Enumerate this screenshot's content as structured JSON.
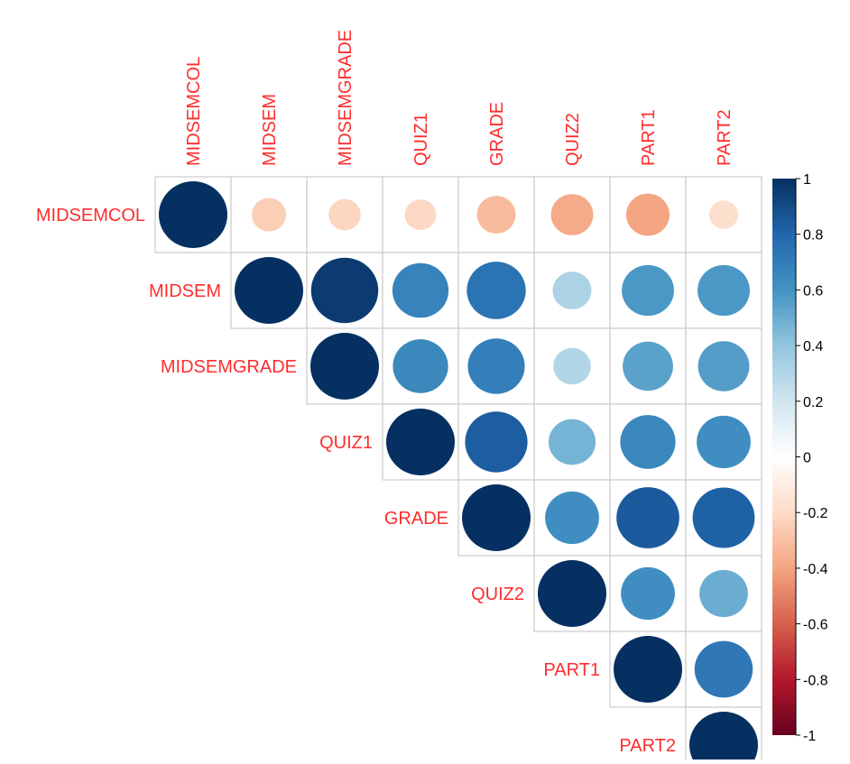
{
  "chart_data": {
    "type": "heatmap",
    "subtype": "correlation-circle-upper",
    "variables": [
      "MIDSEMCOL",
      "MIDSEM",
      "MIDSEMGRADE",
      "QUIZ1",
      "GRADE",
      "QUIZ2",
      "PART1",
      "PART2"
    ],
    "matrix": [
      [
        1.0,
        -0.25,
        -0.22,
        -0.21,
        -0.32,
        -0.38,
        -0.4,
        -0.18
      ],
      [
        -0.25,
        1.0,
        0.96,
        0.67,
        0.74,
        0.32,
        0.58,
        0.58
      ],
      [
        -0.22,
        0.96,
        1.0,
        0.65,
        0.69,
        0.3,
        0.54,
        0.56
      ],
      [
        -0.21,
        0.67,
        0.65,
        1.0,
        0.83,
        0.47,
        0.65,
        0.62
      ],
      [
        -0.32,
        0.74,
        0.69,
        0.83,
        1.0,
        0.62,
        0.84,
        0.82
      ],
      [
        -0.38,
        0.32,
        0.3,
        0.47,
        0.62,
        1.0,
        0.62,
        0.5
      ],
      [
        -0.4,
        0.58,
        0.54,
        0.65,
        0.84,
        0.62,
        1.0,
        0.72
      ],
      [
        -0.18,
        0.58,
        0.56,
        0.62,
        0.82,
        0.5,
        0.72,
        1.0
      ]
    ],
    "colorbar": {
      "range": [
        -1,
        1
      ],
      "ticks": [
        "1",
        "0.8",
        "0.6",
        "0.4",
        "0.2",
        "0",
        "-0.2",
        "-0.4",
        "-0.6",
        "-0.8",
        "-1"
      ],
      "colors": [
        "#67001F",
        "#B2182B",
        "#D6604D",
        "#F4A582",
        "#FDDBC7",
        "#FFFFFF",
        "#D1E5F0",
        "#92C5DE",
        "#4393C3",
        "#2166AC",
        "#053061"
      ]
    },
    "label_color": "#FF2D2D",
    "grid_color": "#CCCCCC",
    "legend_position": "right"
  }
}
